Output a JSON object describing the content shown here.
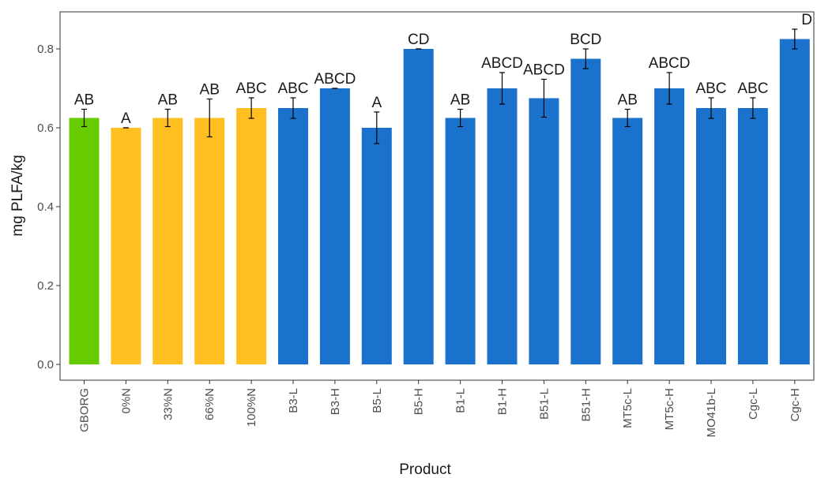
{
  "chart_data": {
    "type": "bar",
    "xlabel": "Product",
    "ylabel": "mg PLFA/kg",
    "ylim": [
      -0.04,
      0.894
    ],
    "yticks": [
      0.0,
      0.2,
      0.4,
      0.6,
      0.8
    ],
    "ytick_labels": [
      "0.0",
      "0.2",
      "0.4",
      "0.6",
      "0.8"
    ],
    "grid": false,
    "legend": "none",
    "categories": [
      "GBORG",
      "0%N",
      "33%N",
      "66%N",
      "100%N",
      "B3-L",
      "B3-H",
      "B5-L",
      "B5-H",
      "B1-L",
      "B1-H",
      "B51-L",
      "B51-H",
      "MT5c-L",
      "MT5c-H",
      "MO41b-L",
      "Cgc-L",
      "Cgc-H"
    ],
    "values": [
      0.625,
      0.6,
      0.625,
      0.625,
      0.65,
      0.65,
      0.7,
      0.6,
      0.8,
      0.625,
      0.7,
      0.675,
      0.775,
      0.625,
      0.7,
      0.65,
      0.65,
      0.825
    ],
    "errors": [
      0.022,
      0.0,
      0.022,
      0.048,
      0.026,
      0.026,
      0.0,
      0.04,
      0.0,
      0.022,
      0.04,
      0.048,
      0.025,
      0.022,
      0.04,
      0.026,
      0.026,
      0.025
    ],
    "sig_labels": [
      "AB",
      "A",
      "AB",
      "AB",
      "ABC",
      "ABC",
      "ABCD",
      "A",
      "CD",
      "AB",
      "ABCD",
      "ABCD",
      "BCD",
      "AB",
      "ABCD",
      "ABC",
      "ABC",
      "D"
    ],
    "colors": [
      "#66cc00",
      "#ffbf20",
      "#ffbf20",
      "#ffbf20",
      "#ffbf20",
      "#1b72cc",
      "#1b72cc",
      "#1b72cc",
      "#1b72cc",
      "#1b72cc",
      "#1b72cc",
      "#1b72cc",
      "#1b72cc",
      "#1b72cc",
      "#1b72cc",
      "#1b72cc",
      "#1b72cc",
      "#1b72cc"
    ]
  }
}
